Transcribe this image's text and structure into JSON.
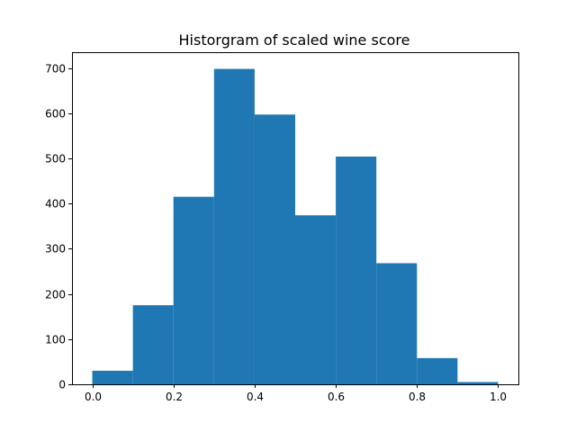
{
  "chart_data": {
    "type": "bar",
    "title": "Historgram of scaled wine score",
    "xlabel": "",
    "ylabel": "",
    "bin_edges": [
      0.0,
      0.1,
      0.2,
      0.3,
      0.4,
      0.5,
      0.6,
      0.7,
      0.8,
      0.9,
      1.0
    ],
    "values": [
      30,
      175,
      415,
      698,
      597,
      374,
      504,
      268,
      58,
      5
    ],
    "xlim": [
      -0.05,
      1.05
    ],
    "ylim": [
      0,
      735
    ],
    "x_ticks": [
      0.0,
      0.2,
      0.4,
      0.6,
      0.8,
      1.0
    ],
    "x_tick_labels": [
      "0.0",
      "0.2",
      "0.4",
      "0.6",
      "0.8",
      "1.0"
    ],
    "y_ticks": [
      0,
      100,
      200,
      300,
      400,
      500,
      600,
      700
    ],
    "y_tick_labels": [
      "0",
      "100",
      "200",
      "300",
      "400",
      "500",
      "600",
      "700"
    ],
    "grid": false,
    "bar_color": "#1f77b4"
  }
}
